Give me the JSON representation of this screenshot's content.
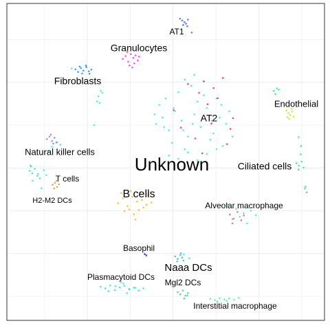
{
  "chart_data": {
    "type": "scatter",
    "xlim": [
      0,
      100
    ],
    "ylim": [
      0,
      100
    ],
    "grid": true,
    "series": [
      {
        "name": "AT1",
        "color": "#4a5ff0",
        "x": [
          54.5,
          55.2,
          55.9,
          56.4,
          57,
          55.5,
          56.8,
          58.2
        ],
        "values": [
          95.2,
          94.6,
          94.1,
          93.6,
          94.9,
          93.2,
          92.8,
          90.8
        ]
      },
      {
        "name": "Granulocytes",
        "color": "#ff33e6",
        "x": [
          36.5,
          37.4,
          38.2,
          39,
          39.8,
          40.5,
          41.2,
          38.6,
          39.5,
          37.9,
          40.1,
          41.6
        ],
        "values": [
          82.5,
          83.4,
          81.6,
          84,
          82.8,
          83.6,
          82,
          80.4,
          79.8,
          84.6,
          81.1,
          83.2
        ]
      },
      {
        "name": "Fibroblasts",
        "color": "#1e8cff",
        "x": [
          21.6,
          22.4,
          23.3,
          24.1,
          25,
          25.8,
          26.6,
          23.7,
          24.9,
          22.9,
          26
        ],
        "values": [
          79.2,
          78.4,
          79.6,
          78.8,
          79.9,
          78.6,
          79.1,
          77.9,
          80.4,
          80.1,
          77.8
        ]
      },
      {
        "name": "Endothelial",
        "color": "#b5f01e",
        "x": [
          88,
          88.6,
          89.2,
          89.8,
          90.3,
          88.9,
          89.6,
          88.3
        ],
        "values": [
          66.2,
          65.4,
          64.8,
          65.9,
          64.3,
          63.6,
          66.8,
          64.1
        ]
      },
      {
        "name": "Ciliated cells",
        "color": "#2ee87a",
        "x": [
          91.2,
          92,
          92.8,
          93.4,
          91.8,
          92.5,
          93.8,
          94.4,
          94,
          92.6,
          91.9,
          84,
          85,
          84.5,
          85.6
        ],
        "values": [
          49.6,
          48.8,
          50.1,
          48.2,
          47.6,
          52.4,
          41.6,
          40.4,
          42.2,
          55,
          57.8,
          72.4,
          73.2,
          71.4,
          72.8
        ]
      },
      {
        "name": "Unknown",
        "color": "#2ef0d0",
        "x": [
          47,
          49,
          51,
          53,
          55,
          57,
          59,
          61,
          63,
          65,
          67,
          69,
          71,
          48,
          50,
          52,
          54,
          56,
          58,
          60,
          62,
          64,
          66,
          68,
          70,
          46.5,
          49.5,
          52.5,
          55.5,
          58.5,
          61.5,
          64.5,
          67.5,
          51,
          54,
          57,
          60,
          63,
          66,
          56,
          59,
          62,
          28.8,
          29.6,
          28.4,
          30.1,
          29.2,
          27.5,
          20.4,
          14.2,
          15.5,
          13.1,
          16.8,
          11.6,
          12.4,
          7.4,
          9.8,
          8.1,
          10.9,
          69.4,
          72.2,
          74.5,
          76.8,
          71,
          73.3,
          75.6,
          78.4,
          34.2,
          36.7,
          38.5,
          40.4,
          35.9,
          55.7,
          57.4,
          56.8
        ],
        "values": [
          62,
          64,
          60,
          66,
          63,
          58,
          65,
          61,
          67,
          59,
          64,
          62,
          58,
          68,
          70,
          56,
          72,
          54,
          74,
          69,
          71,
          57,
          70,
          55,
          66,
          65,
          61,
          67,
          60,
          62,
          64,
          63,
          68,
          52,
          51,
          53,
          50.5,
          52.5,
          54,
          76,
          77.5,
          75.5,
          70.7,
          72.4,
          69.1,
          71.8,
          68.6,
          61.6,
          79.5,
          54.7,
          56.1,
          53.2,
          55.4,
          47.4,
          45.8,
          48.9,
          46.2,
          44.1,
          41.7,
          36.4,
          35.2,
          33.8,
          34.6,
          31.9,
          32.7,
          30.6,
          33.2,
          10.8,
          11.6,
          9.9,
          10.3,
          12.1,
          20.8,
          19.6,
          7.9
        ]
      },
      {
        "name": "AT2",
        "color": "#ff1f6e",
        "x": [
          57,
          60.5,
          62,
          63.2,
          65.1,
          66.4,
          68,
          71.2,
          70.4,
          52.5,
          54.8,
          59.3,
          64.4,
          69.3,
          61.5
        ],
        "values": [
          74.6,
          71.8,
          75.4,
          68.2,
          73.3,
          70.1,
          76.5,
          63.8,
          60.4,
          66.3,
          60.8,
          57.4,
          62.1,
          55.6,
          52.7
        ]
      },
      {
        "name": "Natural killer cells",
        "color": "#8a7cf5",
        "x": [
          12.6,
          13.4,
          14.2,
          15,
          15.8,
          13.8,
          14.6
        ],
        "values": [
          57.2,
          58,
          56.6,
          57.6,
          56.2,
          58.6,
          55.8
        ]
      },
      {
        "name": "T cells",
        "color": "#d69a3c",
        "x": [
          14.4,
          15.1,
          15.8,
          16.4,
          14.9,
          15.6
        ],
        "values": [
          42.8,
          43.4,
          42.1,
          42.9,
          41.6,
          44
        ]
      },
      {
        "name": "H2-M2 DCs",
        "color": "#45d9b0",
        "x": [
          7.2,
          8,
          8.8,
          9.6,
          7.6,
          10.4
        ],
        "values": [
          47.2,
          46.4,
          47.8,
          45.6,
          48.6,
          44.8
        ]
      },
      {
        "name": "B cells",
        "color": "#ffb31a",
        "x": [
          35,
          36.5,
          38,
          39.5,
          41,
          42.5,
          44,
          45.5,
          37,
          38.5,
          40,
          41.5,
          43,
          36,
          39,
          42,
          44.5,
          40.5
        ],
        "values": [
          37,
          38.5,
          36,
          39,
          37.5,
          38,
          36.5,
          37.2,
          34.5,
          35,
          33.5,
          34.8,
          35.6,
          40.2,
          40.8,
          40.4,
          39.6,
          31.8
        ]
      },
      {
        "name": "Alveolar macrophage",
        "color": "#e35d84",
        "x": [
          70.2,
          71.4,
          72.6,
          73.8,
          71,
          74.6
        ],
        "values": [
          33.4,
          32.1,
          34.2,
          31.6,
          30.6,
          33.1
        ]
      },
      {
        "name": "Basophil",
        "color": "#1a1ad6",
        "x": [
          43.4,
          43.9
        ],
        "values": [
          20.9,
          20.5
        ]
      },
      {
        "name": "Naaa DCs",
        "color": "#2ab5f5",
        "x": [
          53,
          53.8,
          54.6,
          55.2,
          53.6,
          54.8,
          55.6
        ],
        "values": [
          20.2,
          19.4,
          20.6,
          19.8,
          18.6,
          21.2,
          18.9
        ]
      },
      {
        "name": "Plasmacytoid DCs",
        "color": "#2ee8b0",
        "x": [
          29.5,
          31,
          32.5,
          34,
          35.5,
          37,
          38.5,
          40,
          41.5,
          43,
          32,
          37.8
        ],
        "values": [
          10.6,
          10.1,
          11,
          9.6,
          10.4,
          10.9,
          9.8,
          10.3,
          9.4,
          10.1,
          9.2,
          8.6
        ]
      },
      {
        "name": "Mgl2 DCs",
        "color": "#3ed67a",
        "x": [
          53.8,
          54.6,
          55.4,
          56.2,
          57,
          55.8
        ],
        "values": [
          8.9,
          8.2,
          9.4,
          7.8,
          8.6,
          6.9
        ]
      },
      {
        "name": "Interstitial macrophage",
        "color": "#5ee8a0",
        "x": [
          64,
          65.5,
          67,
          68.5,
          70,
          71.5,
          73,
          66.2,
          69.2
        ],
        "values": [
          6.8,
          6.4,
          7,
          6.6,
          6.9,
          6.5,
          7.1,
          6,
          6.2
        ]
      }
    ]
  }
}
